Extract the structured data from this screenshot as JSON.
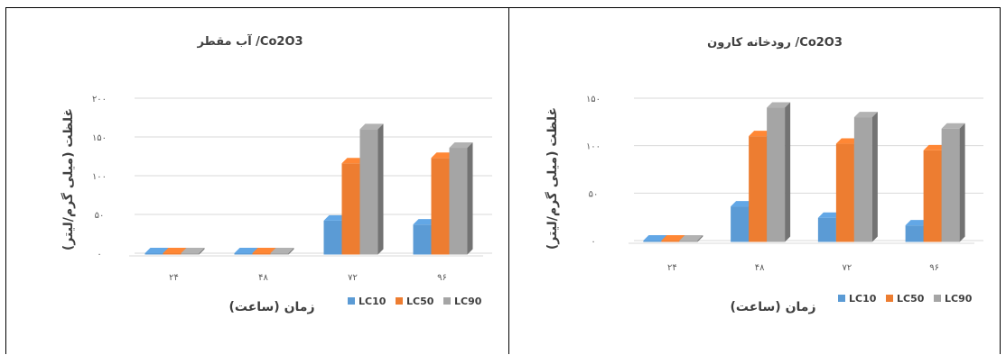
{
  "colors": {
    "LC10": "#5B9BD5",
    "LC50": "#ED7D31",
    "LC90": "#A5A5A5"
  },
  "chart_data": [
    {
      "type": "bar",
      "title": "آب مقطر /Co2O3",
      "xlabel": "زمان (ساعت)",
      "ylabel": "غلظت (میلی گرم/لیتر)",
      "categories": [
        "۲۴",
        "۴۸",
        "۷۲",
        "۹۶"
      ],
      "ylim": [
        0,
        200
      ],
      "yticks": [
        0,
        50,
        100,
        150,
        200
      ],
      "ytick_labels": [
        "۰",
        "۵۰",
        "۱۰۰",
        "۱۵۰",
        "۲۰۰"
      ],
      "grid": true,
      "legend_position": "bottom-right",
      "series": [
        {
          "name": "LC10",
          "values": [
            0,
            0,
            42,
            37
          ]
        },
        {
          "name": "LC50",
          "values": [
            0,
            0,
            116,
            123
          ]
        },
        {
          "name": "LC90",
          "values": [
            0,
            0,
            160,
            136
          ]
        }
      ]
    },
    {
      "type": "bar",
      "title": "رودخانه کارون /Co2O3",
      "xlabel": "زمان (ساعت)",
      "ylabel": "غلظت (میلی گرم/لیتر)",
      "categories": [
        "۲۴",
        "۴۸",
        "۷۲",
        "۹۶"
      ],
      "ylim": [
        0,
        150
      ],
      "yticks": [
        0,
        50,
        100,
        150
      ],
      "ytick_labels": [
        "۰",
        "۵۰",
        "۱۰۰",
        "۱۵۰"
      ],
      "grid": true,
      "legend_position": "bottom-right",
      "series": [
        {
          "name": "LC10",
          "values": [
            0,
            36,
            24,
            16
          ]
        },
        {
          "name": "LC50",
          "values": [
            0,
            110,
            102,
            95
          ]
        },
        {
          "name": "LC90",
          "values": [
            0,
            140,
            130,
            118
          ]
        }
      ]
    }
  ]
}
